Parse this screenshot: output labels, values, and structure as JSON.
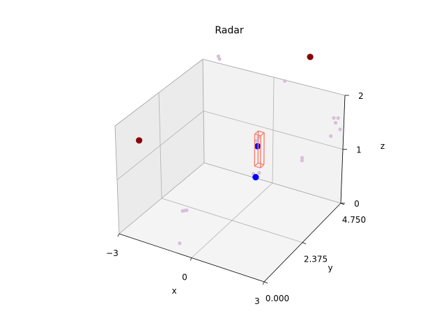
{
  "chart_data": {
    "type": "scatter",
    "projection": "3d",
    "title": "Radar",
    "xlabel": "x",
    "ylabel": "y",
    "zlabel": "z",
    "xlim": [
      -3,
      3
    ],
    "ylim": [
      0,
      4.75
    ],
    "zlim": [
      0,
      2
    ],
    "x_ticks": [
      "−3",
      "0",
      "3"
    ],
    "y_ticks": [
      "0.000",
      "2.375",
      "4.750"
    ],
    "z_ticks": [
      "0",
      "1",
      "2"
    ],
    "grid": true,
    "series": [
      {
        "color": "#d8bfd8",
        "size": "small",
        "points": [
          [
            -2.3,
            4.7,
            2.15
          ],
          [
            -2.25,
            4.7,
            2.1
          ],
          [
            -1.6,
            1.7,
            0.15
          ],
          [
            -1.55,
            1.75,
            0.15
          ],
          [
            -1.5,
            1.8,
            0.15
          ],
          [
            -0.85,
            0.5,
            0.0
          ],
          [
            0.5,
            4.7,
            2.0
          ],
          [
            0.45,
            3.0,
            0.75
          ],
          [
            0.7,
            3.0,
            0.8
          ],
          [
            0.5,
            3.1,
            1.35
          ],
          [
            0.55,
            3.15,
            1.4
          ],
          [
            1.3,
            4.7,
            0.65
          ],
          [
            1.3,
            4.7,
            0.6
          ],
          [
            2.6,
            4.7,
            1.55
          ],
          [
            2.75,
            4.75,
            1.55
          ],
          [
            2.65,
            4.75,
            1.45
          ],
          [
            2.85,
            4.75,
            1.35
          ],
          [
            2.5,
            4.7,
            1.2
          ]
        ]
      },
      {
        "color": "#8b0000",
        "size": "large",
        "points": [
          [
            1.5,
            4.75,
            2.55
          ],
          [
            -3.0,
            1.25,
            1.4
          ]
        ]
      },
      {
        "color": "#0000ff",
        "size": "large",
        "points": [
          [
            0.55,
            3.1,
            1.25
          ],
          [
            0.55,
            3.0,
            0.7
          ]
        ]
      }
    ],
    "box": {
      "color": "#fa8072",
      "x": [
        0.5,
        0.75
      ],
      "y": [
        3.0,
        3.2
      ],
      "z": [
        0.9,
        1.5
      ]
    }
  }
}
